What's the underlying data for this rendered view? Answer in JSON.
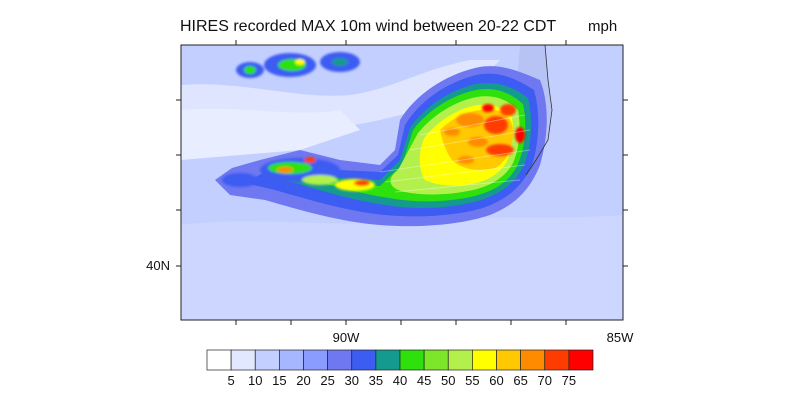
{
  "title": "HIRES recorded MAX 10m wind between 20-22 CDT",
  "units": "mph",
  "axes": {
    "x_ticks": [
      {
        "label": "90W"
      },
      {
        "label": "85W"
      }
    ],
    "y_ticks": [
      {
        "label": "40N"
      }
    ]
  },
  "colorbar": {
    "labels": [
      "5",
      "10",
      "15",
      "20",
      "25",
      "30",
      "35",
      "40",
      "45",
      "50",
      "55",
      "60",
      "65",
      "70",
      "75"
    ],
    "colors": [
      "#ffffff",
      "#e2e8ff",
      "#c3d0ff",
      "#a6b6ff",
      "#8a9cff",
      "#6f78f0",
      "#3d5cf2",
      "#149a8f",
      "#2ee00c",
      "#7de62a",
      "#b4f04c",
      "#ffff00",
      "#ffc800",
      "#ff8c00",
      "#ff3c00",
      "#ff0000"
    ]
  },
  "colors": {
    "background": "#c3d0ff",
    "lake": "#b8c3f5",
    "calm": "#e2e8ff"
  }
}
